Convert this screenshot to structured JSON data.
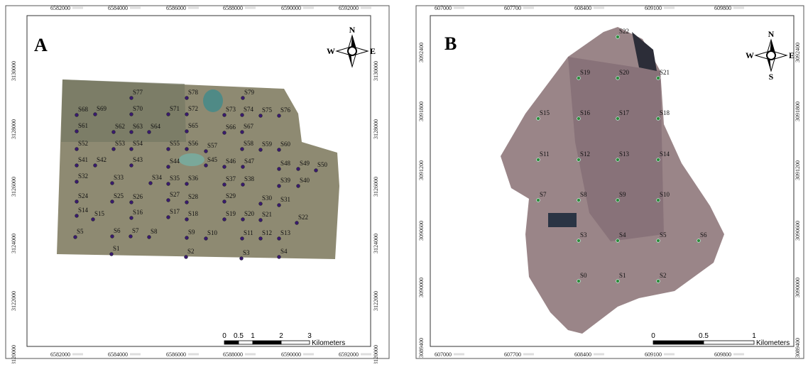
{
  "panels": [
    {
      "label": "A",
      "x_ticks": [
        "6582000",
        "6584000",
        "6586000",
        "6588000",
        "6590000",
        "6592000"
      ],
      "y_ticks": [
        "3130000",
        "3128000",
        "3126000",
        "3124000",
        "3122000",
        "3120000"
      ],
      "compass": [
        "N",
        "W",
        "E"
      ],
      "scale": {
        "ticks": [
          0,
          0.5,
          1,
          2,
          3
        ],
        "unit": "Kilometers"
      },
      "samples": [
        "S1",
        "S2",
        "S3",
        "S4",
        "S5",
        "S6",
        "S7",
        "S8",
        "S9",
        "S10",
        "S11",
        "S12",
        "S13",
        "S14",
        "S15",
        "S16",
        "S17",
        "S18",
        "S19",
        "S20",
        "S21",
        "S22",
        "S24",
        "S25",
        "S26",
        "S27",
        "S28",
        "S29",
        "S30",
        "S31",
        "S32",
        "S33",
        "S34",
        "S35",
        "S36",
        "S37",
        "S38",
        "S39",
        "S40",
        "S41",
        "S42",
        "S43",
        "S44",
        "S45",
        "S46",
        "S47",
        "S48",
        "S49",
        "S50",
        "S52",
        "S53",
        "S54",
        "S55",
        "S56",
        "S57",
        "S58",
        "S59",
        "S60",
        "S61",
        "S62",
        "S63",
        "S64",
        "S65",
        "S66",
        "S67",
        "S68",
        "S69",
        "S70",
        "S71",
        "S72",
        "S73",
        "S74",
        "S75",
        "S76",
        "S77",
        "S78",
        "S79"
      ]
    },
    {
      "label": "B",
      "x_ticks": [
        "607000",
        "607700",
        "608400",
        "609100",
        "609800"
      ],
      "y_ticks": [
        "3092400",
        "3091800",
        "3091200",
        "3090600",
        "3090000",
        "3089400"
      ],
      "compass": [
        "N",
        "W",
        "E",
        "S"
      ],
      "scale": {
        "ticks": [
          0,
          0.5,
          1
        ],
        "unit": "Kilometers"
      },
      "samples": [
        "S0",
        "S1",
        "S2",
        "S3",
        "S4",
        "S5",
        "S6",
        "S7",
        "S8",
        "S9",
        "S10",
        "S11",
        "S12",
        "S13",
        "S14",
        "S15",
        "S16",
        "S17",
        "S18",
        "S19",
        "S20",
        "S21",
        "S22"
      ]
    }
  ]
}
